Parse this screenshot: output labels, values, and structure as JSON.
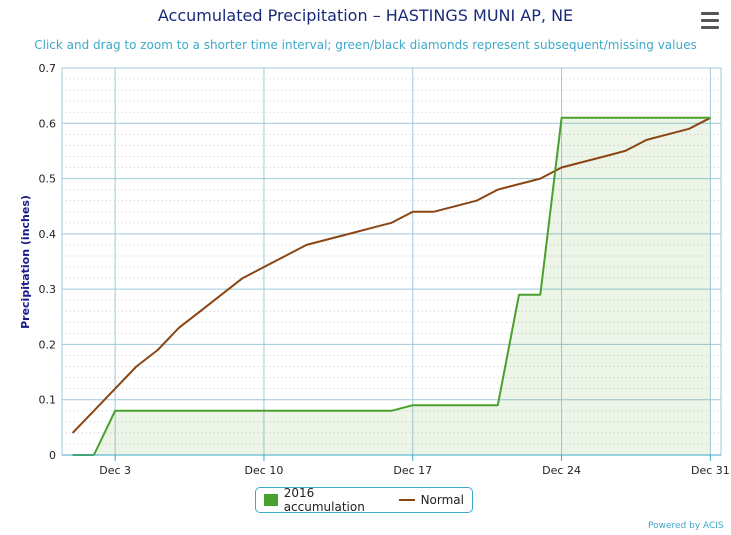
{
  "title": "Accumulated Precipitation – HASTINGS MUNI AP, NE",
  "subtitle": "Click and drag to zoom to a shorter time interval; green/black diamonds represent subsequent/missing values",
  "menu_icon": "hamburger-menu-icon",
  "credits": "Powered by ACIS",
  "colors": {
    "accum": "#4aa02c",
    "normal": "#8b4513",
    "grid": "#9fc9d9",
    "axis": "#3fa9c9"
  },
  "chart_data": {
    "type": "area",
    "title": "Accumulated Precipitation – HASTINGS MUNI AP, NE",
    "ylabel": "Precipitation (inches)",
    "xlabel": "",
    "ylim": [
      0,
      0.7
    ],
    "yticks": [
      "0",
      "0.1",
      "0.2",
      "0.3",
      "0.4",
      "0.5",
      "0.6",
      "0.7"
    ],
    "x_days": [
      1,
      2,
      3,
      4,
      5,
      6,
      7,
      8,
      9,
      10,
      11,
      12,
      13,
      14,
      15,
      16,
      17,
      18,
      19,
      20,
      21,
      22,
      23,
      24,
      25,
      26,
      27,
      28,
      29,
      30,
      31
    ],
    "xtick_days": [
      3,
      10,
      17,
      24,
      31
    ],
    "xtick_labels": [
      "Dec 3",
      "Dec 10",
      "Dec 17",
      "Dec 24",
      "Dec 31"
    ],
    "legend_placement": "bottom-center",
    "series": [
      {
        "name": "2016 accumulation",
        "values": [
          0,
          0,
          0.08,
          0.08,
          0.08,
          0.08,
          0.08,
          0.08,
          0.08,
          0.08,
          0.08,
          0.08,
          0.08,
          0.08,
          0.08,
          0.08,
          0.09,
          0.09,
          0.09,
          0.09,
          0.09,
          0.29,
          0.29,
          0.61,
          0.61,
          0.61,
          0.61,
          0.61,
          0.61,
          0.61,
          0.61
        ]
      },
      {
        "name": "Normal",
        "values": [
          0.04,
          0.08,
          0.12,
          0.16,
          0.19,
          0.23,
          0.26,
          0.29,
          0.32,
          0.34,
          0.36,
          0.38,
          0.39,
          0.4,
          0.41,
          0.42,
          0.44,
          0.44,
          0.45,
          0.46,
          0.48,
          0.49,
          0.5,
          0.52,
          0.53,
          0.54,
          0.55,
          0.57,
          0.58,
          0.59,
          0.61
        ]
      }
    ]
  }
}
